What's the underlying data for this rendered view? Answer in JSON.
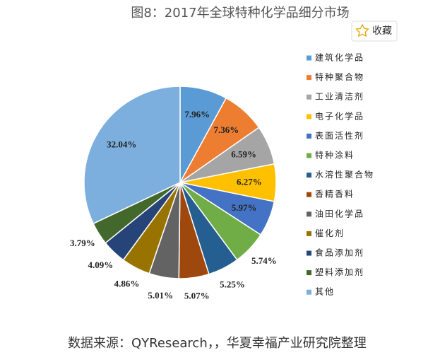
{
  "chart_data": {
    "type": "pie",
    "title": "图8：2017年全球特种化学品细分市场",
    "button": "收藏",
    "source": "数据来源：QYResearch，，华夏幸福产业研究院整理",
    "categories": [
      "建筑化学品",
      "特种聚合物",
      "工业清洁剂",
      "电子化学品",
      "表面活性剂",
      "特种涂料",
      "水溶性聚合物",
      "香精香料",
      "油田化学品",
      "催化剂",
      "食品添加剂",
      "塑料添加剂",
      "其他"
    ],
    "values": [
      7.96,
      7.36,
      6.59,
      6.27,
      5.97,
      5.74,
      5.25,
      5.07,
      5.01,
      4.86,
      4.09,
      3.79,
      32.04
    ],
    "value_labels": [
      "7.96%",
      "7.36%",
      "6.59%",
      "6.27%",
      "5.97%",
      "5.74%",
      "5.25%",
      "5.07%",
      "5.01%",
      "4.86%",
      "4.09%",
      "3.79%",
      "32.04%"
    ],
    "colors": [
      "#5b9bd5",
      "#ed7d31",
      "#a5a5a5",
      "#ffc000",
      "#4472c4",
      "#70ad47",
      "#255e91",
      "#9e480e",
      "#636363",
      "#997300",
      "#264478",
      "#43682b",
      "#7cafdd"
    ],
    "legend": "right"
  }
}
